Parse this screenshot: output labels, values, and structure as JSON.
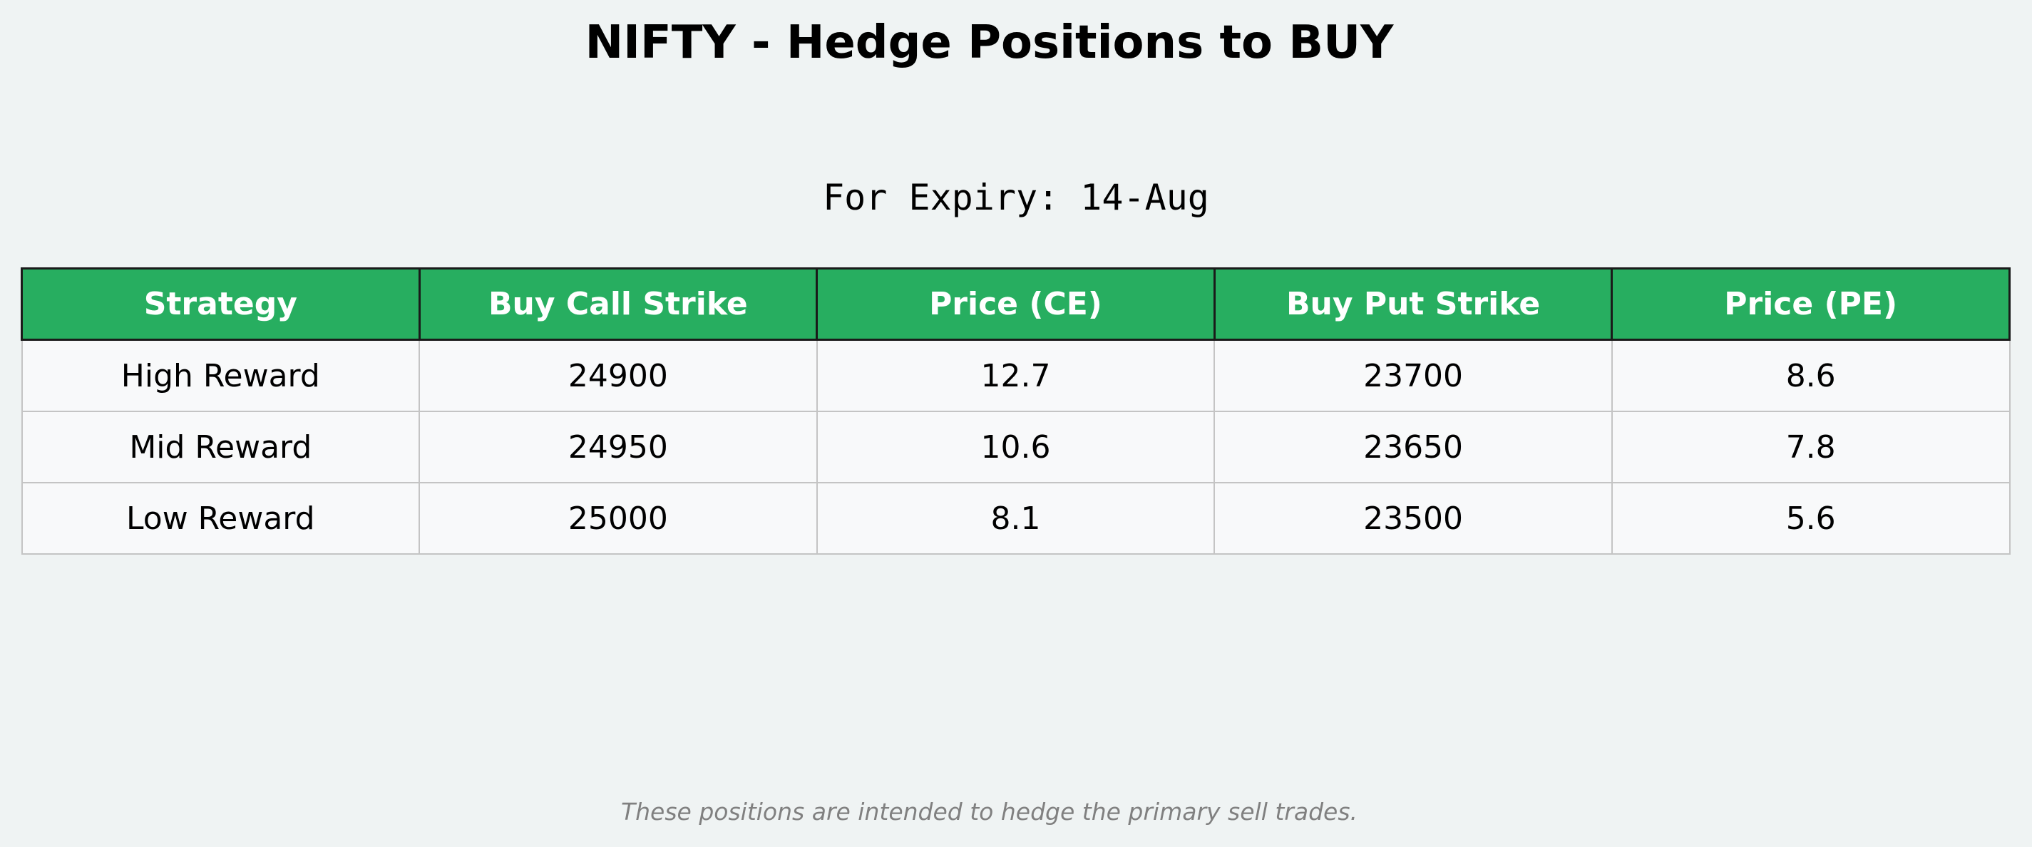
{
  "title": "NIFTY - Hedge Positions to BUY",
  "subtitle": "For Expiry: 14-Aug",
  "footer": "These positions are intended to hedge the primary sell trades.",
  "colors": {
    "header_bg": "#27ae60",
    "header_text": "#ffffff",
    "cell_bg": "#f8f9fa",
    "page_bg": "#eff3f3",
    "footer_text": "#808080"
  },
  "chart_data": {
    "type": "table",
    "title": "NIFTY - Hedge Positions to BUY",
    "subtitle": "For Expiry: 14-Aug",
    "columns": [
      "Strategy",
      "Buy Call Strike",
      "Price (CE)",
      "Buy Put Strike",
      "Price (PE)"
    ],
    "rows": [
      [
        "High Reward",
        "24900",
        "12.7",
        "23700",
        "8.6"
      ],
      [
        "Mid Reward",
        "24950",
        "10.6",
        "23650",
        "7.8"
      ],
      [
        "Low Reward",
        "25000",
        "8.1",
        "23500",
        "5.6"
      ]
    ]
  }
}
